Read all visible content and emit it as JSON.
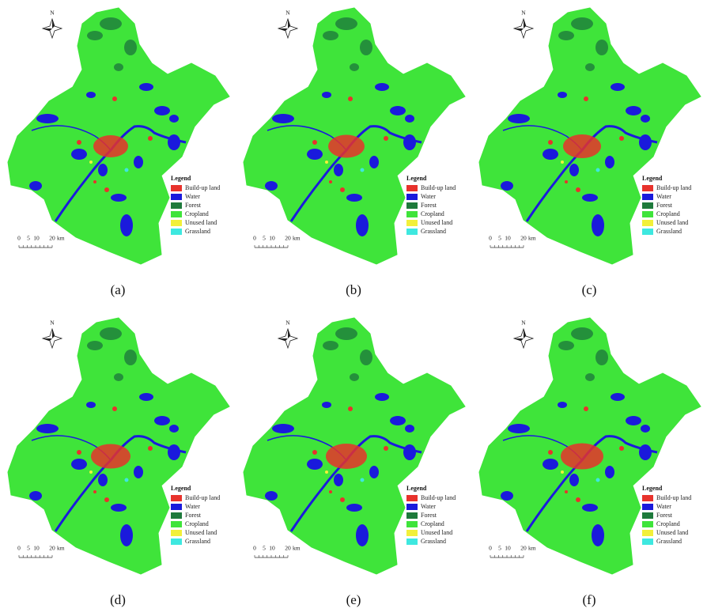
{
  "north": "N",
  "legend": {
    "title": "Legend",
    "items": [
      {
        "label": "Build-up land",
        "color": "#e8322c"
      },
      {
        "label": "Water",
        "color": "#1a1adc"
      },
      {
        "label": "Forest",
        "color": "#1e7a3c"
      },
      {
        "label": "Cropland",
        "color": "#3fe43a"
      },
      {
        "label": "Unused land",
        "color": "#f2f03a"
      },
      {
        "label": "Grassland",
        "color": "#3ee8e0"
      }
    ]
  },
  "scale_bar": {
    "ticks": [
      "0",
      "5",
      "10",
      "20"
    ],
    "unit": "km"
  },
  "panels": [
    {
      "label": "(a)"
    },
    {
      "label": "(b)"
    },
    {
      "label": "(c)"
    },
    {
      "label": "(d)"
    },
    {
      "label": "(e)"
    },
    {
      "label": "(f)"
    }
  ]
}
